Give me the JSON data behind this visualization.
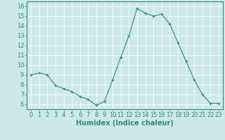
{
  "x": [
    0,
    1,
    2,
    3,
    4,
    5,
    6,
    7,
    8,
    9,
    10,
    11,
    12,
    13,
    14,
    15,
    16,
    17,
    18,
    19,
    20,
    21,
    22,
    23
  ],
  "y": [
    9.0,
    9.2,
    9.0,
    7.9,
    7.6,
    7.3,
    6.8,
    6.5,
    5.9,
    6.3,
    8.5,
    10.8,
    13.0,
    15.8,
    15.3,
    15.0,
    15.2,
    14.2,
    12.3,
    10.4,
    8.5,
    7.0,
    6.1,
    6.1
  ],
  "line_color": "#2e8b7a",
  "marker": "+",
  "marker_size": 3,
  "marker_linewidth": 0.8,
  "line_width": 0.8,
  "bg_color": "#cde8e8",
  "grid_color": "#ffffff",
  "xlabel": "Humidex (Indice chaleur)",
  "xlabel_fontsize": 7,
  "tick_fontsize": 6,
  "ylim": [
    5.5,
    16.5
  ],
  "xlim": [
    -0.5,
    23.5
  ],
  "yticks": [
    6,
    7,
    8,
    9,
    10,
    11,
    12,
    13,
    14,
    15,
    16
  ],
  "xticks": [
    0,
    1,
    2,
    3,
    4,
    5,
    6,
    7,
    8,
    9,
    10,
    11,
    12,
    13,
    14,
    15,
    16,
    17,
    18,
    19,
    20,
    21,
    22,
    23
  ],
  "spine_color": "#2e8b7a",
  "tick_color": "#2e8b7a"
}
